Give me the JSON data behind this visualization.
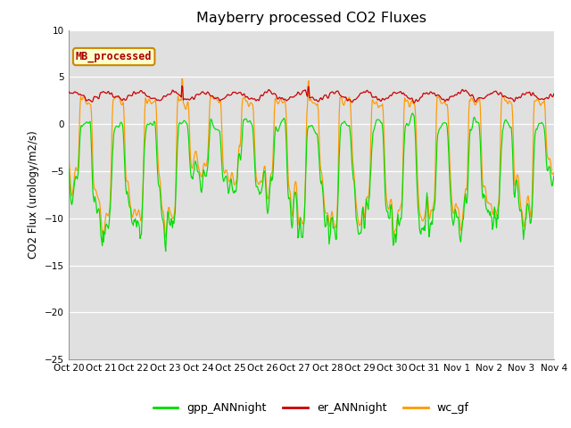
{
  "title": "Mayberry processed CO2 Fluxes",
  "ylabel": "CO2 Flux (urology/m2/s)",
  "ylim": [
    -25,
    10
  ],
  "yticks": [
    -25,
    -20,
    -15,
    -10,
    -5,
    0,
    5,
    10
  ],
  "background_color": "#ffffff",
  "plot_bg_color": "#e0e0e0",
  "grid_color": "#ffffff",
  "annotation_text": "MB_processed",
  "annotation_bg": "#ffffcc",
  "annotation_border": "#cc8800",
  "annotation_text_color": "#aa0000",
  "line_gpp": "#00dd00",
  "line_er": "#cc0000",
  "line_wc": "#ff9900",
  "legend_labels": [
    "gpp_ANNnight",
    "er_ANNnight",
    "wc_gf"
  ],
  "n_days": 15,
  "pts_per_day": 48,
  "xtick_labels": [
    "Oct 20",
    "Oct 21",
    "Oct 22",
    "Oct 23",
    "Oct 24",
    "Oct 25",
    "Oct 26",
    "Oct 27",
    "Oct 28",
    "Oct 29",
    "Oct 30",
    "Oct 31",
    "Nov 1",
    "Nov 2",
    "Nov 3",
    "Nov 4"
  ],
  "seed": 7
}
